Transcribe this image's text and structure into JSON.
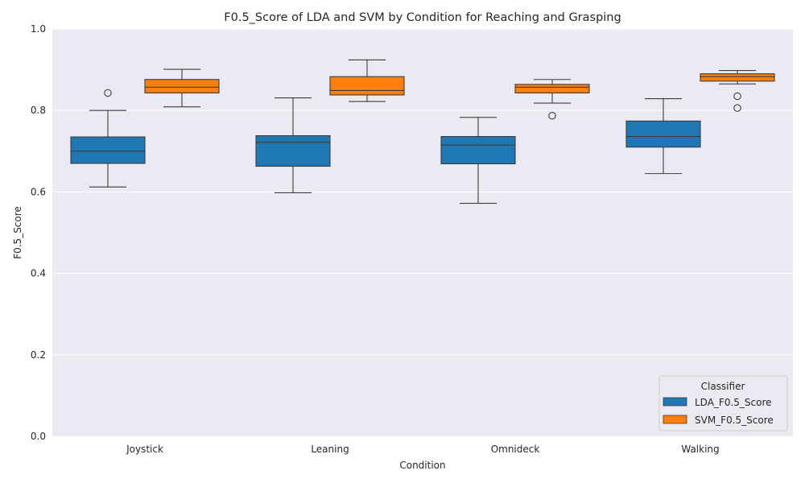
{
  "chart_data": {
    "type": "box",
    "title": "F0.5_Score of LDA and SVM by Condition for Reaching and Grasping",
    "xlabel": "Condition",
    "ylabel": "F0.5_Score",
    "ylim": [
      0.0,
      1.0
    ],
    "yticks": [
      "0.0",
      "0.2",
      "0.4",
      "0.6",
      "0.8",
      "1.0"
    ],
    "grid": true,
    "categories": [
      "Joystick",
      "Leaning",
      "Omnideck",
      "Walking"
    ],
    "legend": {
      "title": "Classifier",
      "position": "lower-right"
    },
    "series": [
      {
        "name": "LDA_F0.5_Score",
        "color": "#1f77b4",
        "boxes": [
          {
            "whisker_low": 0.612,
            "q1": 0.67,
            "median": 0.7,
            "q3": 0.735,
            "whisker_high": 0.8,
            "outliers": [
              0.843
            ]
          },
          {
            "whisker_low": 0.598,
            "q1": 0.663,
            "median": 0.722,
            "q3": 0.738,
            "whisker_high": 0.831,
            "outliers": []
          },
          {
            "whisker_low": 0.572,
            "q1": 0.669,
            "median": 0.715,
            "q3": 0.736,
            "whisker_high": 0.783,
            "outliers": []
          },
          {
            "whisker_low": 0.645,
            "q1": 0.71,
            "median": 0.736,
            "q3": 0.774,
            "whisker_high": 0.829,
            "outliers": []
          }
        ]
      },
      {
        "name": "SVM_F0.5_Score",
        "color": "#ff7f0e",
        "boxes": [
          {
            "whisker_low": 0.809,
            "q1": 0.843,
            "median": 0.857,
            "q3": 0.876,
            "whisker_high": 0.901,
            "outliers": []
          },
          {
            "whisker_low": 0.822,
            "q1": 0.838,
            "median": 0.849,
            "q3": 0.883,
            "whisker_high": 0.924,
            "outliers": []
          },
          {
            "whisker_low": 0.818,
            "q1": 0.843,
            "median": 0.857,
            "q3": 0.864,
            "whisker_high": 0.876,
            "outliers": [
              0.787
            ]
          },
          {
            "whisker_low": 0.865,
            "q1": 0.872,
            "median": 0.883,
            "q3": 0.89,
            "whisker_high": 0.898,
            "outliers": [
              0.835,
              0.806
            ]
          }
        ]
      }
    ]
  }
}
